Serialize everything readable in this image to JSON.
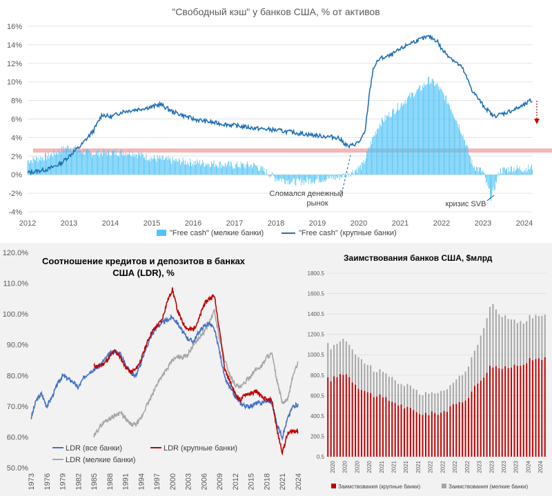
{
  "chart_data": [
    {
      "type": "line",
      "title": "\"Свободный кэш\" у банков США, % от активов",
      "xlabel": "",
      "ylabel": "",
      "x_tick_labels": [
        "2012",
        "2013",
        "2014",
        "2015",
        "2016",
        "2017",
        "2018",
        "2019",
        "2020",
        "2021",
        "2022",
        "2023",
        "2024"
      ],
      "y_tick_labels": [
        "-4%",
        "-2%",
        "0%",
        "2%",
        "4%",
        "6%",
        "8%",
        "10%",
        "12%",
        "14%",
        "16%"
      ],
      "ylim": [
        -4,
        16
      ],
      "grid": "horizontal",
      "legend_placement": "bottom",
      "threshold_band": {
        "y": 2.6,
        "color": "#f4b6b6"
      },
      "series": [
        {
          "name": "\"Free cash\" (мелкие банки)",
          "kind": "bar",
          "color": "#4fc3f7",
          "x": [
            2012.0,
            2012.5,
            2013.0,
            2013.5,
            2014.0,
            2014.5,
            2015.0,
            2015.5,
            2016.0,
            2016.5,
            2017.0,
            2017.5,
            2018.0,
            2018.5,
            2019.0,
            2019.5,
            2019.8,
            2020.1,
            2020.3,
            2020.5,
            2020.75,
            2021.0,
            2021.25,
            2021.5,
            2021.7,
            2021.9,
            2022.2,
            2022.5,
            2022.75,
            2023.0,
            2023.2,
            2023.25,
            2023.4,
            2023.7,
            2024.0,
            2024.2
          ],
          "values": [
            1.5,
            2.0,
            3.0,
            2.3,
            2.4,
            2.4,
            1.8,
            1.5,
            1.3,
            1.2,
            1.0,
            1.0,
            -0.4,
            -0.8,
            -0.5,
            -0.3,
            0.2,
            1.0,
            3.5,
            5.5,
            6.5,
            7.5,
            8.5,
            9.3,
            10.2,
            9.6,
            7.5,
            4.5,
            1.0,
            0.3,
            -2.6,
            -1.8,
            0.4,
            0.7,
            0.6,
            0.8
          ]
        },
        {
          "name": "\"Free cash\" (крупные банки)",
          "kind": "line",
          "color": "#1f6fb4",
          "x": [
            2012.0,
            2012.5,
            2012.8,
            2013.0,
            2013.3,
            2013.6,
            2013.8,
            2014.0,
            2014.3,
            2014.6,
            2015.0,
            2015.2,
            2015.5,
            2016.0,
            2016.5,
            2017.0,
            2017.5,
            2018.0,
            2018.5,
            2019.0,
            2019.5,
            2019.75,
            2020.0,
            2020.15,
            2020.25,
            2020.35,
            2020.5,
            2020.75,
            2021.0,
            2021.25,
            2021.5,
            2021.7,
            2021.9,
            2022.0,
            2022.25,
            2022.5,
            2022.75,
            2023.0,
            2023.25,
            2023.5,
            2023.75,
            2024.0,
            2024.15,
            2024.2
          ],
          "values": [
            0.2,
            0.6,
            1.2,
            2.0,
            3.2,
            4.8,
            6.5,
            6.2,
            6.8,
            7.0,
            7.3,
            7.6,
            6.8,
            6.0,
            5.6,
            5.3,
            5.0,
            4.8,
            4.5,
            4.2,
            4.0,
            3.0,
            3.5,
            4.5,
            8.5,
            11.5,
            12.5,
            12.8,
            13.5,
            14.2,
            14.6,
            14.9,
            14.4,
            13.5,
            12.5,
            11.5,
            9.0,
            7.5,
            6.3,
            6.6,
            7.0,
            7.5,
            8.0,
            7.8
          ]
        }
      ],
      "annotations": [
        "Сломался денежный рынок",
        "кризис SVB"
      ]
    },
    {
      "type": "line",
      "title": "Соотношение кредитов и депозитов в банках США (LDR), %",
      "xlabel": "",
      "ylabel": "",
      "x_tick_labels": [
        "1973",
        "1976",
        "1979",
        "1982",
        "1985",
        "1988",
        "1991",
        "1994",
        "1997",
        "2000",
        "2003",
        "2006",
        "2009",
        "2012",
        "2015",
        "2018",
        "2021",
        "2024"
      ],
      "y_tick_labels": [
        "50.0%",
        "60.0%",
        "70.0%",
        "80.0%",
        "90.0%",
        "100.0%",
        "110.0%",
        "120.0%"
      ],
      "ylim": [
        50,
        120
      ],
      "grid": "none",
      "legend_placement": "bottom-left",
      "series": [
        {
          "name": "LDR (все банки)",
          "color": "#4472c4",
          "x": [
            1973,
            1974,
            1975,
            1976,
            1977,
            1978,
            1979,
            1980,
            1981,
            1982,
            1983,
            1984,
            1985,
            1986,
            1987,
            1988,
            1989,
            1990,
            1991,
            1992,
            1993,
            1994,
            1995,
            1996,
            1997,
            1998,
            1999,
            2000,
            2001,
            2002,
            2003,
            2004,
            2005,
            2006,
            2007,
            2008,
            2009,
            2010,
            2011,
            2012,
            2013,
            2014,
            2015,
            2016,
            2017,
            2018,
            2019,
            2020,
            2021,
            2022,
            2023,
            2024
          ],
          "values": [
            66,
            72,
            74,
            70,
            73,
            77,
            80,
            79,
            78,
            76,
            79,
            81,
            82,
            83,
            85,
            87,
            88,
            87,
            84,
            81,
            80,
            84,
            89,
            93,
            96,
            97,
            98,
            99,
            97,
            94,
            92,
            91,
            94,
            96,
            97,
            95,
            88,
            79,
            76,
            73,
            71,
            70,
            70,
            71,
            71,
            72,
            71,
            64,
            60,
            66,
            70,
            70.5
          ]
        },
        {
          "name": "LDR (крупные банки)",
          "color": "#c00000",
          "x": [
            1985,
            1986,
            1987,
            1988,
            1989,
            1990,
            1991,
            1992,
            1993,
            1994,
            1995,
            1996,
            1997,
            1998,
            1999,
            2000,
            2001,
            2002,
            2003,
            2004,
            2005,
            2006,
            2007,
            2008,
            2009,
            2010,
            2011,
            2012,
            2013,
            2014,
            2015,
            2016,
            2017,
            2018,
            2019,
            2020,
            2021,
            2022,
            2023,
            2024
          ],
          "values": [
            83,
            83,
            84,
            86,
            88,
            86,
            83,
            81,
            82,
            85,
            90,
            94,
            96,
            98,
            104,
            108,
            101,
            97,
            95,
            95,
            98,
            103,
            105,
            106,
            95,
            82,
            78,
            74,
            72,
            74,
            74,
            75,
            73,
            72,
            72,
            62,
            55,
            61,
            62,
            62
          ]
        },
        {
          "name": "LDR (мелкие банки)",
          "color": "#a6a6a6",
          "x": [
            1985,
            1986,
            1987,
            1988,
            1989,
            1990,
            1991,
            1992,
            1993,
            1994,
            1995,
            1996,
            1997,
            1998,
            1999,
            2000,
            2001,
            2002,
            2003,
            2004,
            2005,
            2006,
            2007,
            2008,
            2009,
            2010,
            2011,
            2012,
            2013,
            2014,
            2015,
            2016,
            2017,
            2018,
            2019,
            2020,
            2021,
            2022,
            2023,
            2024
          ],
          "values": [
            60,
            63,
            65,
            66,
            67,
            68,
            66,
            64,
            64,
            66,
            70,
            73,
            77,
            80,
            82,
            85,
            86,
            86,
            87,
            90,
            92,
            94,
            97,
            101,
            92,
            85,
            80,
            77,
            76,
            78,
            80,
            82,
            83,
            86,
            87,
            78,
            71,
            72,
            80,
            84
          ]
        }
      ]
    },
    {
      "type": "bar",
      "title": "Заимствования банков США, $млрд",
      "xlabel": "",
      "ylabel": "",
      "x_tick_labels": [
        "2020",
        "2020",
        "2020",
        "2020",
        "2021",
        "2021",
        "2021",
        "2021",
        "2022",
        "2022",
        "2022",
        "2022",
        "2023",
        "2023",
        "2023",
        "2023",
        "2024",
        "2024"
      ],
      "y_tick_labels": [
        "0.5",
        "200.5",
        "400.5",
        "600.5",
        "800.5",
        "1000.5",
        "1200.5",
        "1400.5",
        "1600.5",
        "1800.5"
      ],
      "ylim": [
        0.5,
        1800.5
      ],
      "grid": "horizontal",
      "legend_placement": "bottom",
      "stacked": true,
      "categories": [
        "2020-Q1",
        "2020-Q2",
        "2020-Q3",
        "2020-Q4",
        "2021-Q1",
        "2021-Q2",
        "2021-Q3",
        "2021-Q4",
        "2022-Q1",
        "2022-Q2",
        "2022-Q3",
        "2022-Q4",
        "2023-Q1",
        "2023-Q2",
        "2023-Q3",
        "2023-Q4",
        "2024-Q1",
        "2024-Q2"
      ],
      "series": [
        {
          "name": "Заимствования (крупные банки)",
          "color": "#c00000",
          "values": [
            760,
            830,
            700,
            620,
            580,
            540,
            480,
            430,
            420,
            440,
            500,
            580,
            740,
            900,
            860,
            900,
            940,
            970
          ]
        },
        {
          "name": "Заимствования (мелкие банки)",
          "color": "#a6a6a6",
          "values": [
            320,
            340,
            300,
            270,
            250,
            230,
            210,
            200,
            195,
            200,
            230,
            270,
            420,
            620,
            500,
            430,
            420,
            420
          ]
        }
      ]
    }
  ]
}
